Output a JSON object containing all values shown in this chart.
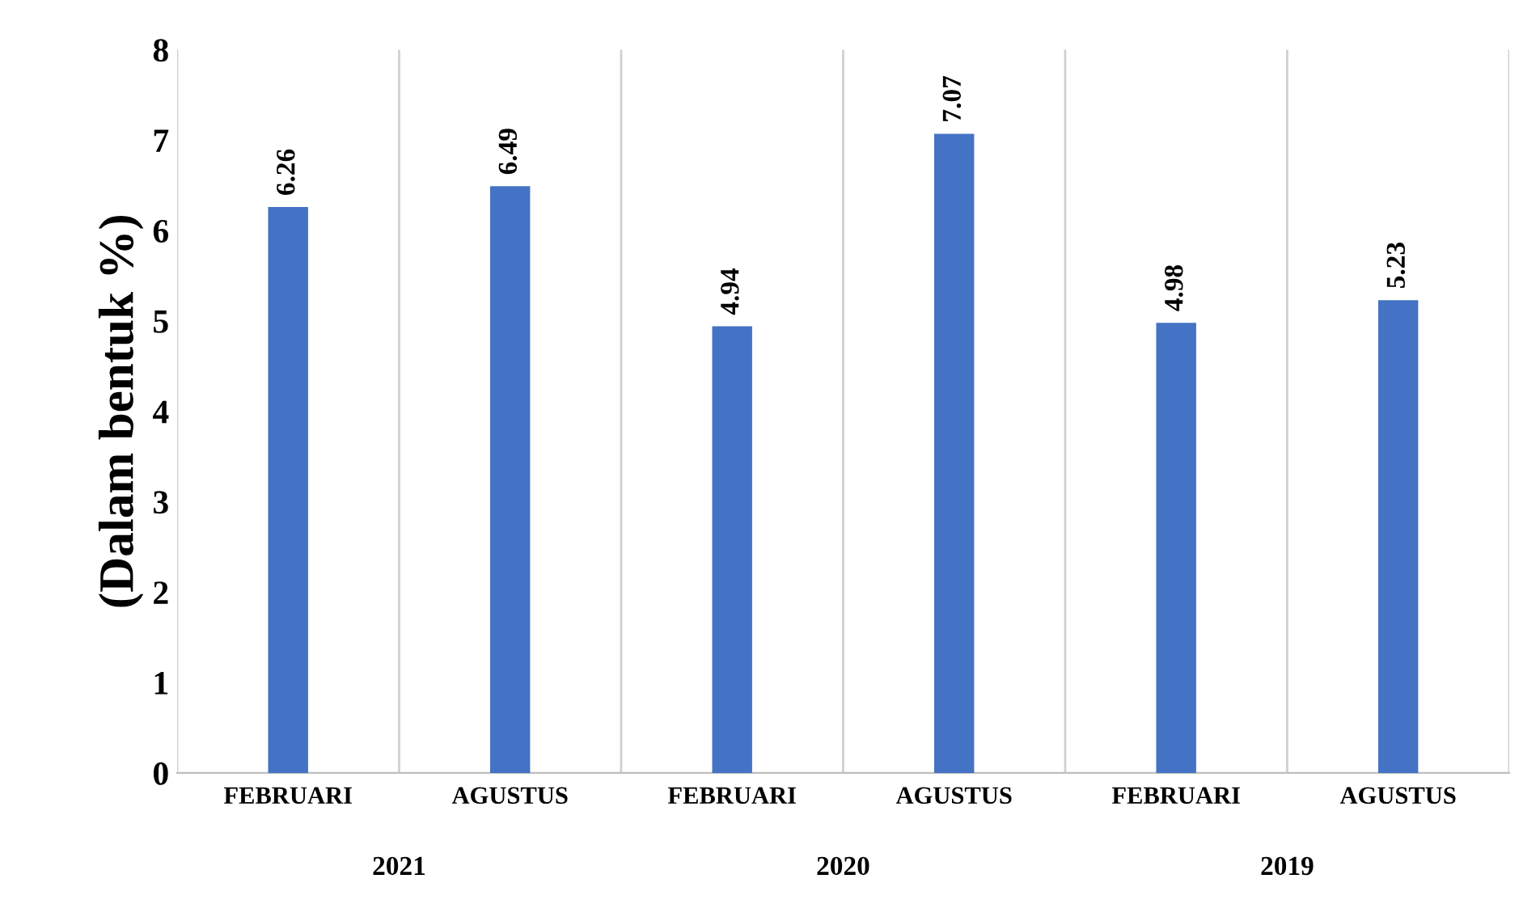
{
  "chart_data": {
    "type": "bar",
    "ylabel": "(Dalam bentuk %)",
    "categories": [
      "FEBRUARI",
      "AGUSTUS",
      "FEBRUARI",
      "AGUSTUS",
      "FEBRUARI",
      "AGUSTUS"
    ],
    "values": [
      6.26,
      6.49,
      4.94,
      7.07,
      4.98,
      5.23
    ],
    "color": "#4472c4",
    "ylim": [
      0,
      8
    ],
    "yticks": [
      0,
      1,
      2,
      3,
      4,
      5,
      6,
      7,
      8
    ],
    "grid": "x",
    "data_labels": true,
    "annotations": [
      "2021",
      "2020",
      "2019"
    ]
  }
}
